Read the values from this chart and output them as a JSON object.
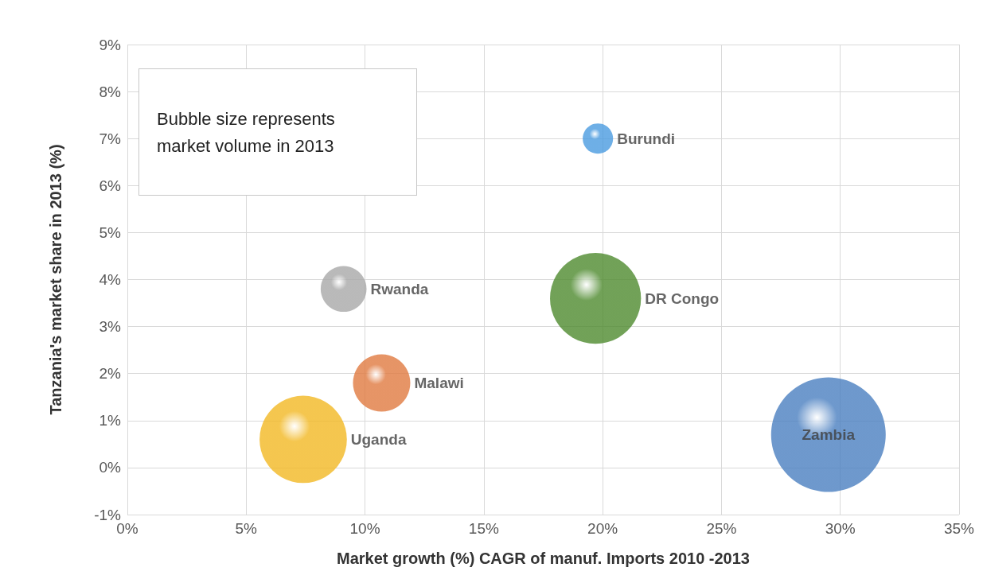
{
  "chart_data": {
    "type": "bubble",
    "xlabel": "Market growth (%) CAGR of manuf. Imports 2010 -2013",
    "ylabel": "Tanzania's market share in 2013 (%)",
    "annotations": [
      "Bubble size represents market volume in 2013"
    ],
    "series": [
      {
        "name": "Burundi",
        "color": "#4a9be0",
        "x": [
          19.8
        ],
        "values": [
          7.0
        ],
        "sizes": [
          0.07
        ]
      },
      {
        "name": "DR Congo",
        "color": "#4e8a2e",
        "x": [
          19.7
        ],
        "values": [
          3.6
        ],
        "sizes": [
          0.63
        ]
      },
      {
        "name": "Rwanda",
        "color": "#a8a8a8",
        "x": [
          9.1
        ],
        "values": [
          3.8
        ],
        "sizes": [
          0.16
        ]
      },
      {
        "name": "Malawi",
        "color": "#e07a40",
        "x": [
          10.7
        ],
        "values": [
          1.8
        ],
        "sizes": [
          0.25
        ]
      },
      {
        "name": "Uganda",
        "color": "#f2b823",
        "x": [
          7.4
        ],
        "values": [
          0.6
        ],
        "sizes": [
          0.58
        ]
      },
      {
        "name": "Zambia",
        "color": "#4a7fc0",
        "x": [
          29.5
        ],
        "values": [
          0.7
        ],
        "sizes": [
          1
        ]
      }
    ],
    "xlim": [
      0,
      35
    ],
    "xticks": [
      {
        "value": 0,
        "label": "0%"
      },
      {
        "value": 5,
        "label": "5%"
      },
      {
        "value": 10,
        "label": "10%"
      },
      {
        "value": 15,
        "label": "15%"
      },
      {
        "value": 20,
        "label": "20%"
      },
      {
        "value": 25,
        "label": "25%"
      },
      {
        "value": 30,
        "label": "30%"
      },
      {
        "value": 35,
        "label": "35%"
      }
    ],
    "ylim": [
      -1,
      9
    ],
    "yticks": [
      {
        "value": -1,
        "label": "-1%"
      },
      {
        "value": 0,
        "label": "0%"
      },
      {
        "value": 1,
        "label": "1%"
      },
      {
        "value": 2,
        "label": "2%"
      },
      {
        "value": 3,
        "label": "3%"
      },
      {
        "value": 4,
        "label": "4%"
      },
      {
        "value": 5,
        "label": "5%"
      },
      {
        "value": 6,
        "label": "6%"
      },
      {
        "value": 7,
        "label": "7%"
      },
      {
        "value": 8,
        "label": "8%"
      },
      {
        "value": 9,
        "label": "9%"
      }
    ],
    "grid": true,
    "legend": false
  }
}
